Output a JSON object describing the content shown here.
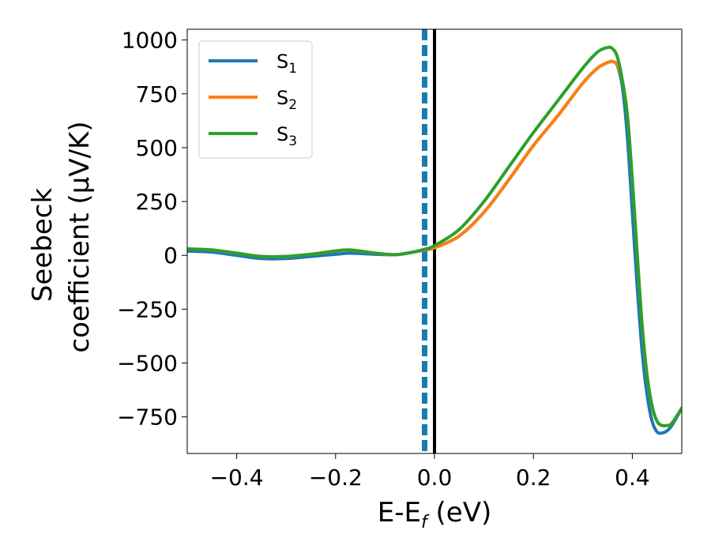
{
  "chart_data": {
    "type": "line",
    "xlabel": "E-E",
    "xlabel_sub": "f",
    "xlabel_unit": " (eV)",
    "ylabel_line1": "Seebeck",
    "ylabel_line2": "coefficient  (μV/K)",
    "xlim": [
      -0.5,
      0.5
    ],
    "ylim": [
      -920,
      1050
    ],
    "x_ticks": [
      -0.4,
      -0.2,
      0.0,
      0.2,
      0.4
    ],
    "x_tick_labels": [
      "−0.4",
      "−0.2",
      "0.0",
      "0.2",
      "0.4"
    ],
    "y_ticks": [
      -750,
      -500,
      -250,
      0,
      250,
      500,
      750,
      1000
    ],
    "y_tick_labels": [
      "−750",
      "−500",
      "−250",
      "0",
      "250",
      "500",
      "750",
      "1000"
    ],
    "grid": false,
    "legend_position": "top-left",
    "vlines": [
      {
        "x": -0.02,
        "style": "dashed",
        "color": "#1f77b4"
      },
      {
        "x": 0.0,
        "style": "solid",
        "color": "#000000"
      }
    ],
    "series": [
      {
        "name": "S",
        "sub": "1",
        "color": "#1f77b4",
        "x": [
          -0.5,
          -0.45,
          -0.4,
          -0.35,
          -0.3,
          -0.25,
          -0.2,
          -0.17,
          -0.12,
          -0.08,
          -0.05,
          -0.02,
          0.0,
          0.05,
          0.1,
          0.15,
          0.2,
          0.25,
          0.3,
          0.33,
          0.35,
          0.36,
          0.37,
          0.38,
          0.39,
          0.4,
          0.41,
          0.42,
          0.43,
          0.44,
          0.45,
          0.46,
          0.47,
          0.48,
          0.5
        ],
        "y": [
          20,
          15,
          0,
          -15,
          -15,
          -5,
          5,
          10,
          5,
          3,
          12,
          25,
          35,
          90,
          200,
          350,
          510,
          650,
          800,
          870,
          895,
          900,
          880,
          780,
          550,
          200,
          -150,
          -450,
          -650,
          -770,
          -820,
          -825,
          -815,
          -790,
          -710
        ]
      },
      {
        "name": "S",
        "sub": "2",
        "color": "#ff7f0e",
        "x": [
          -0.5,
          -0.45,
          -0.4,
          -0.35,
          -0.3,
          -0.25,
          -0.2,
          -0.17,
          -0.12,
          -0.08,
          -0.05,
          -0.02,
          0.0,
          0.05,
          0.1,
          0.15,
          0.2,
          0.25,
          0.3,
          0.33,
          0.35,
          0.36,
          0.37,
          0.38,
          0.39,
          0.4,
          0.41,
          0.42,
          0.43,
          0.44,
          0.45,
          0.46,
          0.47,
          0.48,
          0.5
        ],
        "y": [
          30,
          25,
          10,
          -5,
          -5,
          5,
          20,
          25,
          10,
          3,
          12,
          25,
          35,
          90,
          200,
          350,
          510,
          650,
          800,
          870,
          895,
          900,
          885,
          810,
          650,
          350,
          0,
          -330,
          -560,
          -700,
          -770,
          -790,
          -790,
          -780,
          -710
        ]
      },
      {
        "name": "S",
        "sub": "3",
        "color": "#2ca02c",
        "x": [
          -0.5,
          -0.45,
          -0.4,
          -0.35,
          -0.3,
          -0.25,
          -0.2,
          -0.17,
          -0.12,
          -0.08,
          -0.05,
          -0.02,
          0.0,
          0.05,
          0.1,
          0.15,
          0.2,
          0.25,
          0.3,
          0.33,
          0.35,
          0.36,
          0.37,
          0.38,
          0.39,
          0.4,
          0.41,
          0.42,
          0.43,
          0.44,
          0.45,
          0.46,
          0.47,
          0.48,
          0.5
        ],
        "y": [
          30,
          25,
          10,
          -5,
          -5,
          5,
          20,
          25,
          10,
          3,
          12,
          28,
          45,
          120,
          250,
          410,
          570,
          720,
          870,
          945,
          965,
          960,
          920,
          810,
          650,
          350,
          0,
          -330,
          -560,
          -700,
          -770,
          -790,
          -790,
          -780,
          -710
        ]
      }
    ]
  }
}
